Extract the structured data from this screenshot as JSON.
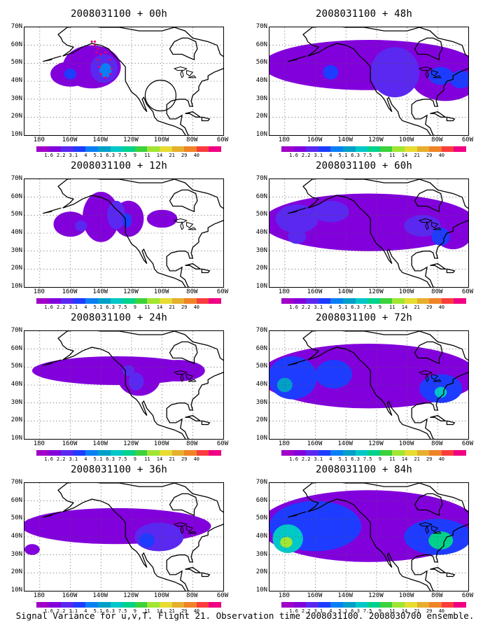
{
  "caption": "Signal Variance for u,v,T. Flight 21. Observation time 2008031100. 2008030700 ensemble.",
  "colorbar": {
    "levels": [
      "1.6",
      "2.2",
      "3.1",
      "4",
      "5.1",
      "6.3",
      "7.5",
      "9",
      "11",
      "14",
      "21",
      "29",
      "40"
    ],
    "colors": [
      "#a000c8",
      "#8200dc",
      "#5a28f0",
      "#1e3cff",
      "#0a7ff5",
      "#00a0c8",
      "#00c8c8",
      "#00d28c",
      "#3cd23c",
      "#a0e632",
      "#e6dc32",
      "#e6af2d",
      "#f08228",
      "#fa3c3c",
      "#f00082"
    ]
  },
  "axes": {
    "y_ticks": [
      "70N",
      "60N",
      "50N",
      "40N",
      "30N",
      "20N",
      "10N"
    ],
    "x_ticks": [
      "180",
      "160W",
      "140W",
      "120W",
      "100W",
      "80W",
      "60W"
    ],
    "lon_range": [
      -190,
      -60
    ],
    "lat_range": [
      10,
      70
    ]
  },
  "chart_data": [
    {
      "type": "heatmap",
      "title": "2008031100 + 00h",
      "field": "Signal Variance for u,v,T",
      "blobs": [
        {
          "lon": -160,
          "lat": 44,
          "rlon": 13,
          "rlat": 7,
          "level": 1
        },
        {
          "lon": -146,
          "lat": 48,
          "rlon": 19,
          "rlat": 12,
          "level": 1
        },
        {
          "lon": -138,
          "lat": 47,
          "rlon": 9,
          "rlat": 8,
          "level": 2
        },
        {
          "lon": -137,
          "lat": 46,
          "rlon": 4,
          "rlat": 4,
          "level": 4
        },
        {
          "lon": -160,
          "lat": 44,
          "rlon": 4,
          "rlat": 3,
          "level": 3
        }
      ]
    },
    {
      "type": "heatmap",
      "title": "2008031100 + 48h",
      "field": "Signal Variance for u,v,T",
      "blobs": [
        {
          "lon": -125,
          "lat": 49,
          "rlon": 70,
          "rlat": 14,
          "level": 1
        },
        {
          "lon": -75,
          "lat": 41,
          "rlon": 22,
          "rlat": 12,
          "level": 1
        },
        {
          "lon": -108,
          "lat": 45,
          "rlon": 16,
          "rlat": 14,
          "level": 2
        },
        {
          "lon": -78,
          "lat": 43,
          "rlon": 8,
          "rlat": 5,
          "level": 3
        },
        {
          "lon": -65,
          "lat": 41,
          "rlon": 7,
          "rlat": 5,
          "level": 3
        },
        {
          "lon": -150,
          "lat": 45,
          "rlon": 5,
          "rlat": 4,
          "level": 3
        }
      ]
    },
    {
      "type": "heatmap",
      "title": "2008031100 + 12h",
      "field": "Signal Variance for u,v,T",
      "blobs": [
        {
          "lon": -160,
          "lat": 45,
          "rlon": 11,
          "rlat": 7,
          "level": 1
        },
        {
          "lon": -140,
          "lat": 49,
          "rlon": 12,
          "rlat": 14,
          "level": 1
        },
        {
          "lon": -122,
          "lat": 48,
          "rlon": 10,
          "rlat": 10,
          "level": 1
        },
        {
          "lon": -100,
          "lat": 48,
          "rlon": 10,
          "rlat": 5,
          "level": 1
        },
        {
          "lon": -130,
          "lat": 50,
          "rlon": 6,
          "rlat": 8,
          "level": 2
        },
        {
          "lon": -123,
          "lat": 47,
          "rlon": 3,
          "rlat": 4,
          "level": 3
        },
        {
          "lon": -153,
          "lat": 44,
          "rlon": 4,
          "rlat": 3,
          "level": 2
        }
      ]
    },
    {
      "type": "heatmap",
      "title": "2008031100 + 60h",
      "field": "Signal Variance for u,v,T",
      "blobs": [
        {
          "lon": -125,
          "lat": 46,
          "rlon": 70,
          "rlat": 16,
          "level": 1
        },
        {
          "lon": -70,
          "lat": 43,
          "rlon": 14,
          "rlat": 12,
          "level": 1
        },
        {
          "lon": -172,
          "lat": 48,
          "rlon": 14,
          "rlat": 8,
          "level": 2
        },
        {
          "lon": -150,
          "lat": 52,
          "rlon": 12,
          "rlat": 6,
          "level": 2
        },
        {
          "lon": -90,
          "lat": 44,
          "rlon": 12,
          "rlat": 6,
          "level": 2
        },
        {
          "lon": -78,
          "lat": 38,
          "rlon": 6,
          "rlat": 5,
          "level": 3
        },
        {
          "lon": -172,
          "lat": 38,
          "rlon": 6,
          "rlat": 4,
          "level": 2
        }
      ]
    },
    {
      "type": "heatmap",
      "title": "2008031100 + 24h",
      "field": "Signal Variance for u,v,T",
      "blobs": [
        {
          "lon": -130,
          "lat": 48,
          "rlon": 55,
          "rlat": 8,
          "level": 1
        },
        {
          "lon": -115,
          "lat": 44,
          "rlon": 14,
          "rlat": 10,
          "level": 1
        },
        {
          "lon": -90,
          "lat": 48,
          "rlon": 18,
          "rlat": 6,
          "level": 1
        },
        {
          "lon": -117,
          "lat": 42,
          "rlon": 5,
          "rlat": 5,
          "level": 2
        },
        {
          "lon": -122,
          "lat": 48,
          "rlon": 4,
          "rlat": 3,
          "level": 2
        }
      ]
    },
    {
      "type": "heatmap",
      "title": "2008031100 + 72h",
      "field": "Signal Variance for u,v,T",
      "blobs": [
        {
          "lon": -125,
          "lat": 45,
          "rlon": 72,
          "rlat": 18,
          "level": 1
        },
        {
          "lon": -175,
          "lat": 44,
          "rlon": 16,
          "rlat": 12,
          "level": 3
        },
        {
          "lon": -148,
          "lat": 46,
          "rlon": 12,
          "rlat": 8,
          "level": 3
        },
        {
          "lon": -78,
          "lat": 38,
          "rlon": 14,
          "rlat": 8,
          "level": 3
        },
        {
          "lon": -180,
          "lat": 40,
          "rlon": 5,
          "rlat": 4,
          "level": 5
        },
        {
          "lon": -78,
          "lat": 36,
          "rlon": 4,
          "rlat": 3,
          "level": 6
        }
      ]
    },
    {
      "type": "heatmap",
      "title": "2008031100 + 36h",
      "field": "Signal Variance for u,v,T",
      "blobs": [
        {
          "lon": -130,
          "lat": 46,
          "rlon": 62,
          "rlat": 10,
          "level": 1
        },
        {
          "lon": -102,
          "lat": 40,
          "rlon": 16,
          "rlat": 8,
          "level": 2
        },
        {
          "lon": -110,
          "lat": 38,
          "rlon": 5,
          "rlat": 4,
          "level": 3
        },
        {
          "lon": -185,
          "lat": 33,
          "rlon": 5,
          "rlat": 3,
          "level": 1
        }
      ]
    },
    {
      "type": "heatmap",
      "title": "2008031100 + 84h",
      "field": "Signal Variance for u,v,T",
      "blobs": [
        {
          "lon": -125,
          "lat": 46,
          "rlon": 72,
          "rlat": 20,
          "level": 1
        },
        {
          "lon": -160,
          "lat": 46,
          "rlon": 30,
          "rlat": 14,
          "level": 3
        },
        {
          "lon": -80,
          "lat": 40,
          "rlon": 22,
          "rlat": 10,
          "level": 3
        },
        {
          "lon": -178,
          "lat": 39,
          "rlon": 10,
          "rlat": 8,
          "level": 6
        },
        {
          "lon": -78,
          "lat": 38,
          "rlon": 8,
          "rlat": 5,
          "level": 7
        },
        {
          "lon": -179,
          "lat": 37,
          "rlon": 4,
          "rlat": 3,
          "level": 9
        }
      ]
    }
  ]
}
